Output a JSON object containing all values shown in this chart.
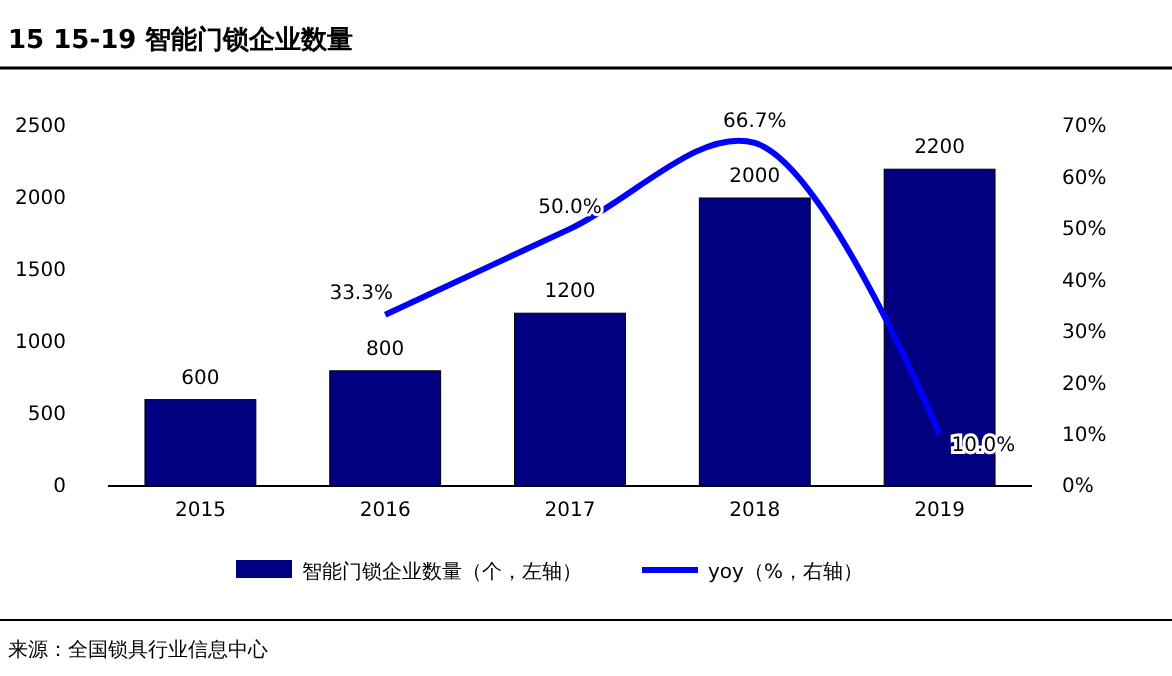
{
  "chart_data": {
    "type": "bar",
    "title": "15 15-19 智能门锁企业数量",
    "categories": [
      "2015",
      "2016",
      "2017",
      "2018",
      "2019"
    ],
    "series": [
      {
        "name": "智能门锁企业数量（个，左轴）",
        "color": "#000080",
        "values": [
          600,
          800,
          1200,
          2000,
          2200
        ],
        "value_labels": [
          "600",
          "800",
          "1200",
          "2000",
          "2200"
        ]
      },
      {
        "name": "yoy（%，右轴）",
        "type": "line",
        "axis": "y2",
        "color": "#0000ff",
        "values": [
          null,
          33.3,
          50.0,
          66.7,
          10.0
        ],
        "value_labels": [
          null,
          "33.3%",
          "50.0%",
          "66.7%",
          "10.0%"
        ]
      }
    ],
    "ylim": [
      0,
      2500
    ],
    "yticks": [
      0,
      500,
      1000,
      1500,
      2000,
      2500
    ],
    "y2lim": [
      0,
      70
    ],
    "y2ticks": [
      {
        "value": 0,
        "label": "0%"
      },
      {
        "value": 10,
        "label": "10%"
      },
      {
        "value": 20,
        "label": "20%"
      },
      {
        "value": 30,
        "label": "30%"
      },
      {
        "value": 40,
        "label": "40%"
      },
      {
        "value": 50,
        "label": "50%"
      },
      {
        "value": 60,
        "label": "60%"
      },
      {
        "value": 70,
        "label": "70%"
      }
    ],
    "legend": "bottom",
    "marker": "none",
    "annotations": [
      "来源：全国锁具行业信息中心"
    ]
  }
}
